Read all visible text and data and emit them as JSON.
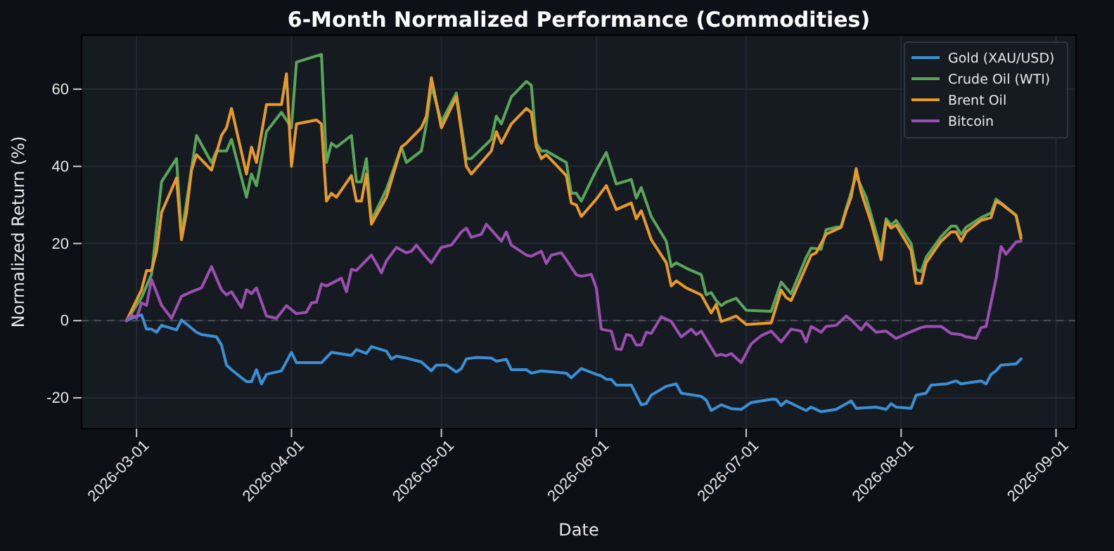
{
  "chart_data": {
    "type": "line",
    "title": "6-Month Normalized Performance (Commodities)",
    "xlabel": "Date",
    "ylabel": "Normalized Return (%)",
    "xlim": [
      "2026-02-18",
      "2026-09-05"
    ],
    "ylim": [
      -28,
      74
    ],
    "xticks": [
      "2026-03-01",
      "2026-04-01",
      "2026-05-01",
      "2026-06-01",
      "2026-07-01",
      "2026-08-01",
      "2026-09-01"
    ],
    "yticks": [
      -20,
      0,
      20,
      40,
      60
    ],
    "grid": true,
    "legend": "top right",
    "line_style": "solid",
    "marker": "none",
    "ref_lines": [
      {
        "axis": "y",
        "value": 0,
        "color": "#4a4f57",
        "line_style": "dashed"
      }
    ],
    "series": [
      {
        "name": "Gold (XAU/USD)",
        "color": "#3b8fd4",
        "x": [
          "2026-02-27",
          "2026-03-01",
          "2026-03-02",
          "2026-03-03",
          "2026-03-04",
          "2026-03-05",
          "2026-03-06",
          "2026-03-09",
          "2026-03-10",
          "2026-03-13",
          "2026-03-14",
          "2026-03-17",
          "2026-03-18",
          "2026-03-19",
          "2026-03-20",
          "2026-03-22",
          "2026-03-23",
          "2026-03-24",
          "2026-03-25",
          "2026-03-26",
          "2026-03-27",
          "2026-03-30",
          "2026-04-01",
          "2026-04-02",
          "2026-04-07",
          "2026-04-09",
          "2026-04-13",
          "2026-04-14",
          "2026-04-16",
          "2026-04-17",
          "2026-04-20",
          "2026-04-21",
          "2026-04-22",
          "2026-04-24",
          "2026-04-27",
          "2026-04-29",
          "2026-04-30",
          "2026-05-02",
          "2026-05-04",
          "2026-05-05",
          "2026-05-06",
          "2026-05-08",
          "2026-05-11",
          "2026-05-12",
          "2026-05-14",
          "2026-05-15",
          "2026-05-18",
          "2026-05-19",
          "2026-05-21",
          "2026-05-26",
          "2026-05-27",
          "2026-05-29",
          "2026-06-01",
          "2026-06-02",
          "2026-06-03",
          "2026-06-04",
          "2026-06-05",
          "2026-06-08",
          "2026-06-10",
          "2026-06-11",
          "2026-06-12",
          "2026-06-15",
          "2026-06-17",
          "2026-06-18",
          "2026-06-22",
          "2026-06-23",
          "2026-06-24",
          "2026-06-26",
          "2026-06-28",
          "2026-06-30",
          "2026-07-02",
          "2026-07-06",
          "2026-07-07",
          "2026-07-08",
          "2026-07-09",
          "2026-07-13",
          "2026-07-14",
          "2026-07-16",
          "2026-07-19",
          "2026-07-22",
          "2026-07-23",
          "2026-07-27",
          "2026-07-29",
          "2026-07-30",
          "2026-07-31",
          "2026-08-03",
          "2026-08-04",
          "2026-08-06",
          "2026-08-07",
          "2026-08-10",
          "2026-08-12",
          "2026-08-13",
          "2026-08-17",
          "2026-08-18",
          "2026-08-19",
          "2026-08-20",
          "2026-08-21",
          "2026-08-24",
          "2026-08-25"
        ],
        "values": [
          0,
          1.2,
          1.5,
          -2.2,
          -2.2,
          -3,
          -1.2,
          -2.4,
          0.2,
          -3,
          -3.6,
          -4.2,
          -6.3,
          -11.5,
          -12.7,
          -14.8,
          -15.8,
          -15.8,
          -12.7,
          -16.4,
          -13.9,
          -13,
          -8.2,
          -10.9,
          -10.9,
          -8.2,
          -9,
          -7.5,
          -8.5,
          -6.7,
          -7.9,
          -9.9,
          -9.2,
          -9.7,
          -10.7,
          -13,
          -11.5,
          -11.5,
          -13.3,
          -12.4,
          -9.9,
          -9.5,
          -9.7,
          -10.5,
          -10,
          -12.7,
          -12.7,
          -13.6,
          -13,
          -13.6,
          -14.8,
          -12.4,
          -13.9,
          -14.3,
          -15.2,
          -15.2,
          -16.7,
          -16.7,
          -21.8,
          -21.5,
          -19.3,
          -17,
          -16.4,
          -18.8,
          -19.6,
          -20.6,
          -23.3,
          -21.8,
          -22.8,
          -23,
          -21.2,
          -20.4,
          -20.4,
          -22,
          -20.8,
          -23.3,
          -22.4,
          -23.6,
          -23,
          -20.8,
          -22.7,
          -22.4,
          -23,
          -21.5,
          -22.4,
          -22.7,
          -19.3,
          -18.8,
          -16.7,
          -16.4,
          -15.6,
          -16.4,
          -15.6,
          -16.4,
          -13.9,
          -13,
          -11.5,
          -11.2,
          -9.9
        ]
      },
      {
        "name": "Crude Oil (WTI)",
        "color": "#5aa55a",
        "x": [
          "2026-02-27",
          "2026-03-02",
          "2026-03-04",
          "2026-03-06",
          "2026-03-09",
          "2026-03-10",
          "2026-03-13",
          "2026-03-16",
          "2026-03-17",
          "2026-03-19",
          "2026-03-20",
          "2026-03-23",
          "2026-03-24",
          "2026-03-25",
          "2026-03-27",
          "2026-03-30",
          "2026-04-01",
          "2026-04-02",
          "2026-04-07",
          "2026-04-08",
          "2026-04-09",
          "2026-04-10",
          "2026-04-13",
          "2026-04-14",
          "2026-04-15",
          "2026-04-16",
          "2026-04-17",
          "2026-04-20",
          "2026-04-23",
          "2026-04-24",
          "2026-04-27",
          "2026-04-28",
          "2026-04-29",
          "2026-05-01",
          "2026-05-04",
          "2026-05-06",
          "2026-05-07",
          "2026-05-11",
          "2026-05-12",
          "2026-05-13",
          "2026-05-15",
          "2026-05-18",
          "2026-05-19",
          "2026-05-20",
          "2026-05-21",
          "2026-05-22",
          "2026-05-26",
          "2026-05-27",
          "2026-05-28",
          "2026-05-29",
          "2026-06-01",
          "2026-06-03",
          "2026-06-05",
          "2026-06-08",
          "2026-06-09",
          "2026-06-10",
          "2026-06-12",
          "2026-06-15",
          "2026-06-16",
          "2026-06-17",
          "2026-06-19",
          "2026-06-22",
          "2026-06-23",
          "2026-06-24",
          "2026-06-25",
          "2026-06-26",
          "2026-06-27",
          "2026-06-29",
          "2026-07-01",
          "2026-07-06",
          "2026-07-08",
          "2026-07-10",
          "2026-07-13",
          "2026-07-14",
          "2026-07-16",
          "2026-07-17",
          "2026-07-20",
          "2026-07-21",
          "2026-07-23",
          "2026-07-25",
          "2026-07-28",
          "2026-07-29",
          "2026-07-30",
          "2026-07-31",
          "2026-08-03",
          "2026-08-04",
          "2026-08-05",
          "2026-08-06",
          "2026-08-09",
          "2026-08-11",
          "2026-08-12",
          "2026-08-13",
          "2026-08-14",
          "2026-08-17",
          "2026-08-19",
          "2026-08-20",
          "2026-08-21",
          "2026-08-24",
          "2026-08-25"
        ],
        "values": [
          0,
          6,
          12,
          36,
          42,
          22,
          48,
          41,
          44,
          44,
          47,
          32,
          38,
          35,
          49,
          54,
          50,
          67,
          69,
          41,
          46,
          45,
          48,
          36,
          36,
          42,
          26,
          34,
          45,
          41,
          44,
          51,
          61,
          51.5,
          59,
          42,
          42,
          47,
          53,
          51,
          58,
          62,
          61,
          46,
          44,
          44,
          41,
          33,
          33,
          31,
          39,
          43.6,
          35.4,
          36.6,
          31.8,
          34.5,
          27,
          20.6,
          14,
          15,
          13.6,
          11.9,
          6.7,
          7.3,
          5.2,
          3.9,
          4.8,
          5.8,
          2.7,
          2.4,
          10,
          7,
          16.4,
          18.8,
          18.5,
          23.6,
          24.5,
          29,
          37.6,
          32,
          18.2,
          26.4,
          24.8,
          26,
          20,
          13.3,
          12.7,
          16.4,
          21.8,
          24.5,
          24.5,
          22.4,
          24.2,
          26.7,
          27.9,
          31.5,
          30.5,
          27.3,
          22
        ]
      },
      {
        "name": "Brent Oil",
        "color": "#e69a2b",
        "x": [
          "2026-02-27",
          "2026-03-02",
          "2026-03-03",
          "2026-03-04",
          "2026-03-05",
          "2026-03-06",
          "2026-03-09",
          "2026-03-10",
          "2026-03-11",
          "2026-03-12",
          "2026-03-13",
          "2026-03-16",
          "2026-03-18",
          "2026-03-19",
          "2026-03-20",
          "2026-03-23",
          "2026-03-24",
          "2026-03-25",
          "2026-03-27",
          "2026-03-30",
          "2026-03-31",
          "2026-04-01",
          "2026-04-02",
          "2026-04-06",
          "2026-04-07",
          "2026-04-08",
          "2026-04-09",
          "2026-04-10",
          "2026-04-13",
          "2026-04-14",
          "2026-04-15",
          "2026-04-16",
          "2026-04-17",
          "2026-04-20",
          "2026-04-23",
          "2026-04-24",
          "2026-04-27",
          "2026-04-28",
          "2026-04-29",
          "2026-05-01",
          "2026-05-04",
          "2026-05-06",
          "2026-05-07",
          "2026-05-11",
          "2026-05-12",
          "2026-05-13",
          "2026-05-15",
          "2026-05-18",
          "2026-05-19",
          "2026-05-20",
          "2026-05-21",
          "2026-05-22",
          "2026-05-26",
          "2026-05-27",
          "2026-05-28",
          "2026-05-29",
          "2026-06-01",
          "2026-06-03",
          "2026-06-05",
          "2026-06-08",
          "2026-06-09",
          "2026-06-10",
          "2026-06-12",
          "2026-06-15",
          "2026-06-16",
          "2026-06-17",
          "2026-06-19",
          "2026-06-22",
          "2026-06-24",
          "2026-06-25",
          "2026-06-26",
          "2026-06-27",
          "2026-06-29",
          "2026-07-01",
          "2026-07-06",
          "2026-07-08",
          "2026-07-09",
          "2026-07-10",
          "2026-07-14",
          "2026-07-15",
          "2026-07-17",
          "2026-07-20",
          "2026-07-21",
          "2026-07-22",
          "2026-07-23",
          "2026-07-24",
          "2026-07-26",
          "2026-07-28",
          "2026-07-29",
          "2026-07-30",
          "2026-07-31",
          "2026-08-03",
          "2026-08-04",
          "2026-08-05",
          "2026-08-06",
          "2026-08-09",
          "2026-08-11",
          "2026-08-12",
          "2026-08-13",
          "2026-08-14",
          "2026-08-17",
          "2026-08-19",
          "2026-08-20",
          "2026-08-21",
          "2026-08-24",
          "2026-08-25"
        ],
        "values": [
          0,
          8,
          13,
          13,
          18,
          28,
          37,
          21,
          28,
          39,
          43,
          39,
          48,
          50,
          55,
          38,
          45,
          41,
          56,
          56,
          64,
          40,
          51,
          52,
          51,
          31,
          33,
          32,
          37.6,
          31,
          31,
          38,
          25,
          32,
          45,
          46,
          50,
          53,
          63,
          50,
          58,
          40,
          38,
          44,
          49,
          46,
          51,
          55,
          54,
          45,
          42,
          43,
          37.6,
          30.5,
          30,
          27,
          31.5,
          35,
          28.8,
          30.5,
          26.4,
          28.5,
          21,
          15,
          9,
          10.3,
          8.5,
          6.7,
          2,
          4.2,
          -0.2,
          0.2,
          1.2,
          -1,
          -0.6,
          7.9,
          6,
          5.2,
          17,
          17.6,
          22.4,
          24.2,
          28.5,
          32,
          39.4,
          33.3,
          25.5,
          15.8,
          25.7,
          24,
          24.8,
          18.2,
          9.7,
          9.7,
          15,
          20.6,
          23,
          23,
          20.6,
          23,
          26,
          26.7,
          30.9,
          30.3,
          27.3,
          21.3
        ]
      },
      {
        "name": "Bitcoin",
        "color": "#9b4fb0",
        "x": [
          "2026-02-27",
          "2026-02-28",
          "2026-03-01",
          "2026-03-02",
          "2026-03-03",
          "2026-03-04",
          "2026-03-06",
          "2026-03-08",
          "2026-03-10",
          "2026-03-12",
          "2026-03-14",
          "2026-03-16",
          "2026-03-18",
          "2026-03-19",
          "2026-03-20",
          "2026-03-22",
          "2026-03-23",
          "2026-03-24",
          "2026-03-25",
          "2026-03-27",
          "2026-03-29",
          "2026-03-31",
          "2026-04-02",
          "2026-04-04",
          "2026-04-05",
          "2026-04-06",
          "2026-04-07",
          "2026-04-08",
          "2026-04-11",
          "2026-04-12",
          "2026-04-13",
          "2026-04-14",
          "2026-04-17",
          "2026-04-18",
          "2026-04-19",
          "2026-04-20",
          "2026-04-22",
          "2026-04-24",
          "2026-04-25",
          "2026-04-26",
          "2026-04-28",
          "2026-04-29",
          "2026-05-01",
          "2026-05-03",
          "2026-05-05",
          "2026-05-06",
          "2026-05-07",
          "2026-05-09",
          "2026-05-10",
          "2026-05-13",
          "2026-05-14",
          "2026-05-15",
          "2026-05-18",
          "2026-05-19",
          "2026-05-21",
          "2026-05-22",
          "2026-05-23",
          "2026-05-25",
          "2026-05-26",
          "2026-05-28",
          "2026-05-29",
          "2026-05-31",
          "2026-06-01",
          "2026-06-02",
          "2026-06-04",
          "2026-06-05",
          "2026-06-06",
          "2026-06-07",
          "2026-06-08",
          "2026-06-09",
          "2026-06-10",
          "2026-06-11",
          "2026-06-12",
          "2026-06-14",
          "2026-06-16",
          "2026-06-18",
          "2026-06-20",
          "2026-06-21",
          "2026-06-22",
          "2026-06-25",
          "2026-06-26",
          "2026-06-27",
          "2026-06-28",
          "2026-06-30",
          "2026-07-02",
          "2026-07-04",
          "2026-07-06",
          "2026-07-08",
          "2026-07-10",
          "2026-07-12",
          "2026-07-13",
          "2026-07-14",
          "2026-07-16",
          "2026-07-17",
          "2026-07-19",
          "2026-07-21",
          "2026-07-22",
          "2026-07-24",
          "2026-07-25",
          "2026-07-27",
          "2026-07-29",
          "2026-07-31",
          "2026-08-02",
          "2026-08-05",
          "2026-08-06",
          "2026-08-09",
          "2026-08-11",
          "2026-08-13",
          "2026-08-14",
          "2026-08-16",
          "2026-08-17",
          "2026-08-18",
          "2026-08-20",
          "2026-08-21",
          "2026-08-22",
          "2026-08-24",
          "2026-08-25"
        ],
        "values": [
          0,
          1.5,
          0.6,
          4.6,
          4,
          10.7,
          4,
          0.6,
          6.3,
          7.5,
          8.5,
          14,
          8,
          6.7,
          7.5,
          3.4,
          8,
          7,
          8.5,
          1.2,
          0.6,
          3.9,
          1.8,
          2.2,
          4.6,
          4.8,
          9.5,
          9,
          11,
          7.5,
          13.3,
          13,
          17,
          14.8,
          12.4,
          15.5,
          19,
          17.6,
          18,
          19.6,
          16.4,
          15,
          19,
          19.6,
          23,
          24,
          21.6,
          22.4,
          25,
          20.6,
          23,
          19.6,
          17,
          16.7,
          18,
          14.8,
          17,
          17.6,
          15.8,
          11.9,
          11.5,
          12,
          8.5,
          -2.2,
          -2.7,
          -7.3,
          -7.5,
          -3.6,
          -3.9,
          -6.3,
          -6.3,
          -3,
          -3.3,
          1,
          -0.2,
          -4.2,
          -2.2,
          -3.6,
          -2.7,
          -9.1,
          -8.7,
          -9.1,
          -8.5,
          -10.9,
          -6,
          -3.9,
          -2.7,
          -5.5,
          -2.2,
          -2.7,
          -5.5,
          -1.5,
          -3,
          -1.5,
          -1.2,
          1.2,
          0.2,
          -2.4,
          -0.6,
          -3,
          -2.7,
          -4.6,
          -3.4,
          -1.8,
          -1.5,
          -1.5,
          -3.3,
          -3.6,
          -4.2,
          -4.6,
          -1.8,
          -1.5,
          10.9,
          19.2,
          17.2,
          20.4,
          20.6
        ]
      }
    ]
  }
}
